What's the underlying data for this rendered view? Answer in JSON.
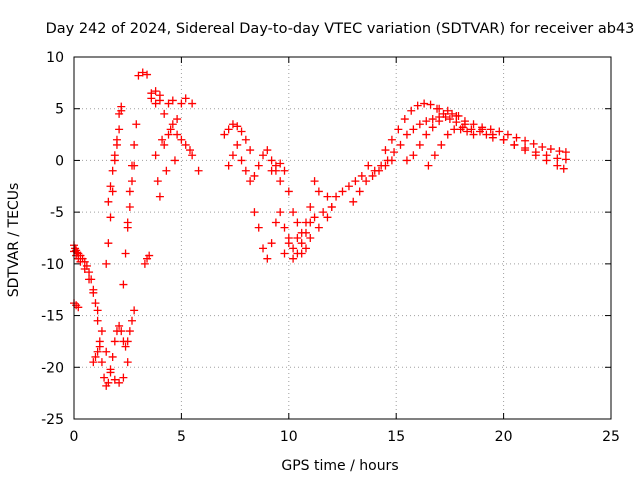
{
  "chart_data": {
    "type": "scatter",
    "title": "Day 242 of 2024, Sidereal Day-to-day VTEC variation (SDTVAR) for receiver ab43",
    "xlabel": "GPS time / hours",
    "ylabel": "SDTVAR / TECUs",
    "xlim": [
      0,
      25
    ],
    "ylim": [
      -25,
      10
    ],
    "xticks": [
      0,
      5,
      10,
      15,
      20,
      25
    ],
    "yticks": [
      -25,
      -20,
      -15,
      -10,
      -5,
      0,
      5,
      10
    ],
    "grid": true,
    "marker": "+",
    "color": "#ff0000",
    "series": [
      {
        "name": "SDTVAR",
        "x": [
          0.0,
          0.05,
          0.1,
          0.15,
          0.2,
          0.3,
          0.4,
          0.5,
          0.6,
          0.7,
          0.8,
          0.9,
          1.0,
          1.1,
          1.2,
          1.3,
          1.4,
          1.5,
          1.6,
          1.7,
          1.8,
          1.9,
          2.0,
          2.1,
          2.2,
          2.3,
          2.4,
          2.5,
          2.6,
          2.7,
          2.8,
          0.0,
          0.1,
          0.2,
          0.3,
          0.5,
          0.7,
          0.9,
          1.1,
          1.3,
          1.5,
          1.7,
          1.9,
          2.1,
          2.3,
          2.5,
          0.0,
          0.1,
          0.2,
          0.9,
          1.0,
          1.1,
          1.2,
          1.5,
          1.6,
          1.7,
          1.8,
          1.9,
          2.0,
          2.1,
          2.2,
          2.3,
          2.4,
          2.5,
          2.6,
          2.7,
          2.8,
          2.9,
          1.6,
          1.7,
          1.8,
          1.9,
          2.0,
          2.1,
          2.2,
          2.5,
          2.6,
          2.7,
          2.8,
          3.0,
          3.2,
          3.4,
          3.6,
          3.8,
          4.0,
          3.3,
          3.4,
          3.5,
          3.6,
          3.8,
          4.0,
          4.2,
          4.4,
          4.6,
          4.8,
          5.0,
          5.2,
          5.5,
          3.8,
          4.0,
          4.2,
          4.4,
          4.6,
          4.8,
          5.0,
          5.2,
          5.4,
          3.9,
          4.1,
          4.3,
          4.5,
          4.7,
          5.5,
          5.8,
          7.0,
          7.2,
          7.4,
          7.6,
          7.8,
          8.0,
          8.2,
          7.2,
          7.4,
          7.6,
          7.8,
          8.0,
          8.2,
          8.4,
          8.6,
          8.8,
          9.0,
          9.2,
          9.4,
          9.6,
          8.4,
          8.6,
          8.8,
          9.0,
          9.2,
          9.4,
          9.6,
          9.8,
          10.0,
          10.2,
          10.4,
          10.6,
          10.8,
          11.0,
          11.2,
          11.4,
          11.6,
          11.8,
          12.0,
          9.2,
          9.4,
          9.6,
          9.8,
          10.0,
          10.2,
          10.4,
          10.6,
          10.8,
          11.0,
          11.2,
          11.4,
          9.8,
          10.0,
          10.2,
          10.4,
          10.6,
          10.8,
          11.0,
          11.8,
          12.0,
          12.2,
          12.5,
          12.8,
          13.1,
          13.4,
          13.7,
          13.0,
          13.3,
          13.6,
          13.9,
          14.2,
          14.5,
          14.8,
          14.0,
          14.3,
          14.6,
          14.9,
          15.2,
          15.5,
          15.8,
          16.1,
          16.4,
          16.7,
          17.0,
          14.5,
          14.8,
          15.1,
          15.4,
          15.7,
          16.0,
          16.3,
          16.6,
          16.9,
          17.2,
          17.5,
          17.8,
          18.1,
          15.5,
          15.8,
          16.1,
          16.4,
          16.7,
          17.0,
          17.3,
          17.6,
          17.9,
          18.2,
          16.5,
          16.8,
          17.1,
          17.4,
          17.7,
          18.0,
          18.3,
          18.6,
          18.9,
          19.2,
          19.5,
          17.0,
          17.4,
          17.8,
          18.2,
          18.6,
          19.0,
          19.4,
          19.8,
          20.2,
          20.6,
          21.0,
          21.4,
          21.8,
          22.2,
          22.6,
          22.9,
          18.5,
          19.0,
          19.5,
          20.0,
          20.5,
          21.0,
          21.5,
          22.0,
          22.5,
          22.8,
          20.0,
          20.5,
          21.0,
          21.5,
          22.0,
          22.5,
          22.9
        ],
        "y": [
          -8.2,
          -8.5,
          -8.7,
          -8.9,
          -9.0,
          -9.2,
          -9.5,
          -9.8,
          -10.2,
          -10.8,
          -11.5,
          -12.5,
          -13.8,
          -15.5,
          -17.5,
          -19.5,
          -21.0,
          -21.8,
          -21.5,
          -20.5,
          -19.0,
          -17.5,
          -16.5,
          -16.0,
          -16.5,
          -17.5,
          -18.0,
          -17.5,
          -16.5,
          -15.5,
          -14.5,
          -8.8,
          -9.2,
          -9.5,
          -9.8,
          -10.5,
          -11.5,
          -12.8,
          -14.5,
          -16.5,
          -18.5,
          -20.2,
          -21.2,
          -21.5,
          -21.0,
          -19.5,
          -13.8,
          -14.0,
          -14.2,
          -19.5,
          -19.0,
          -18.5,
          -18.0,
          -10.0,
          -8.0,
          -5.5,
          -3.0,
          0.0,
          2.0,
          4.5,
          5.2,
          -12.0,
          -9.0,
          -6.0,
          -3.0,
          -0.5,
          1.5,
          3.5,
          -4.0,
          -2.5,
          -1.0,
          0.5,
          1.5,
          3.0,
          4.8,
          -6.5,
          -4.5,
          -2.0,
          -0.5,
          8.2,
          8.5,
          8.3,
          6.5,
          6.7,
          6.3,
          -10.0,
          -9.5,
          -9.2,
          6.0,
          5.5,
          5.8,
          4.5,
          5.5,
          5.8,
          4.0,
          5.5,
          6.0,
          5.5,
          0.5,
          -3.5,
          1.5,
          2.5,
          3.5,
          2.5,
          2.0,
          1.5,
          1.0,
          -2.0,
          2.0,
          -1.0,
          3.0,
          0.0,
          0.5,
          -1.0,
          2.5,
          3.0,
          3.5,
          3.3,
          2.8,
          2.0,
          1.0,
          -0.5,
          0.5,
          1.5,
          0.0,
          -1.0,
          -2.0,
          -1.5,
          -0.5,
          0.5,
          1.0,
          0.0,
          -1.0,
          -2.0,
          -5.0,
          -6.5,
          -8.5,
          -9.5,
          -8.0,
          -6.0,
          -5.0,
          -6.5,
          -7.5,
          -8.5,
          -9.0,
          -8.0,
          -7.0,
          -6.0,
          -5.5,
          -6.5,
          -5.0,
          -3.5,
          -4.5,
          -1.0,
          -0.5,
          -0.3,
          -1.0,
          -3.0,
          -5.0,
          -6.0,
          -7.0,
          -6.0,
          -4.5,
          -2.0,
          -3.0,
          -9.0,
          -8.0,
          -9.5,
          -7.5,
          -9.0,
          -8.5,
          -7.5,
          -5.5,
          -4.5,
          -3.5,
          -3.0,
          -2.5,
          -2.0,
          -1.5,
          -0.5,
          -4.0,
          -3.0,
          -2.0,
          -1.5,
          -1.0,
          -0.5,
          0.0,
          -1.0,
          -0.5,
          0.0,
          0.8,
          1.5,
          2.5,
          3.0,
          3.5,
          3.8,
          4.0,
          4.2,
          1.0,
          2.0,
          3.0,
          4.0,
          4.8,
          5.3,
          5.5,
          5.4,
          5.0,
          4.5,
          4.0,
          3.7,
          3.2,
          0.0,
          0.5,
          1.5,
          2.5,
          3.2,
          3.8,
          4.2,
          4.5,
          4.3,
          3.5,
          -0.5,
          0.5,
          1.5,
          2.5,
          3.0,
          3.0,
          2.8,
          2.5,
          2.8,
          2.5,
          2.2,
          5.0,
          4.8,
          4.3,
          3.8,
          3.5,
          3.2,
          3.0,
          2.8,
          2.5,
          2.2,
          1.9,
          1.6,
          1.3,
          1.1,
          0.9,
          0.8,
          3.0,
          3.0,
          2.5,
          2.0,
          1.5,
          1.0,
          0.5,
          0.0,
          -0.5,
          -0.8,
          2.0,
          1.5,
          1.2,
          0.8,
          0.5,
          0.2,
          0.1
        ]
      }
    ]
  }
}
